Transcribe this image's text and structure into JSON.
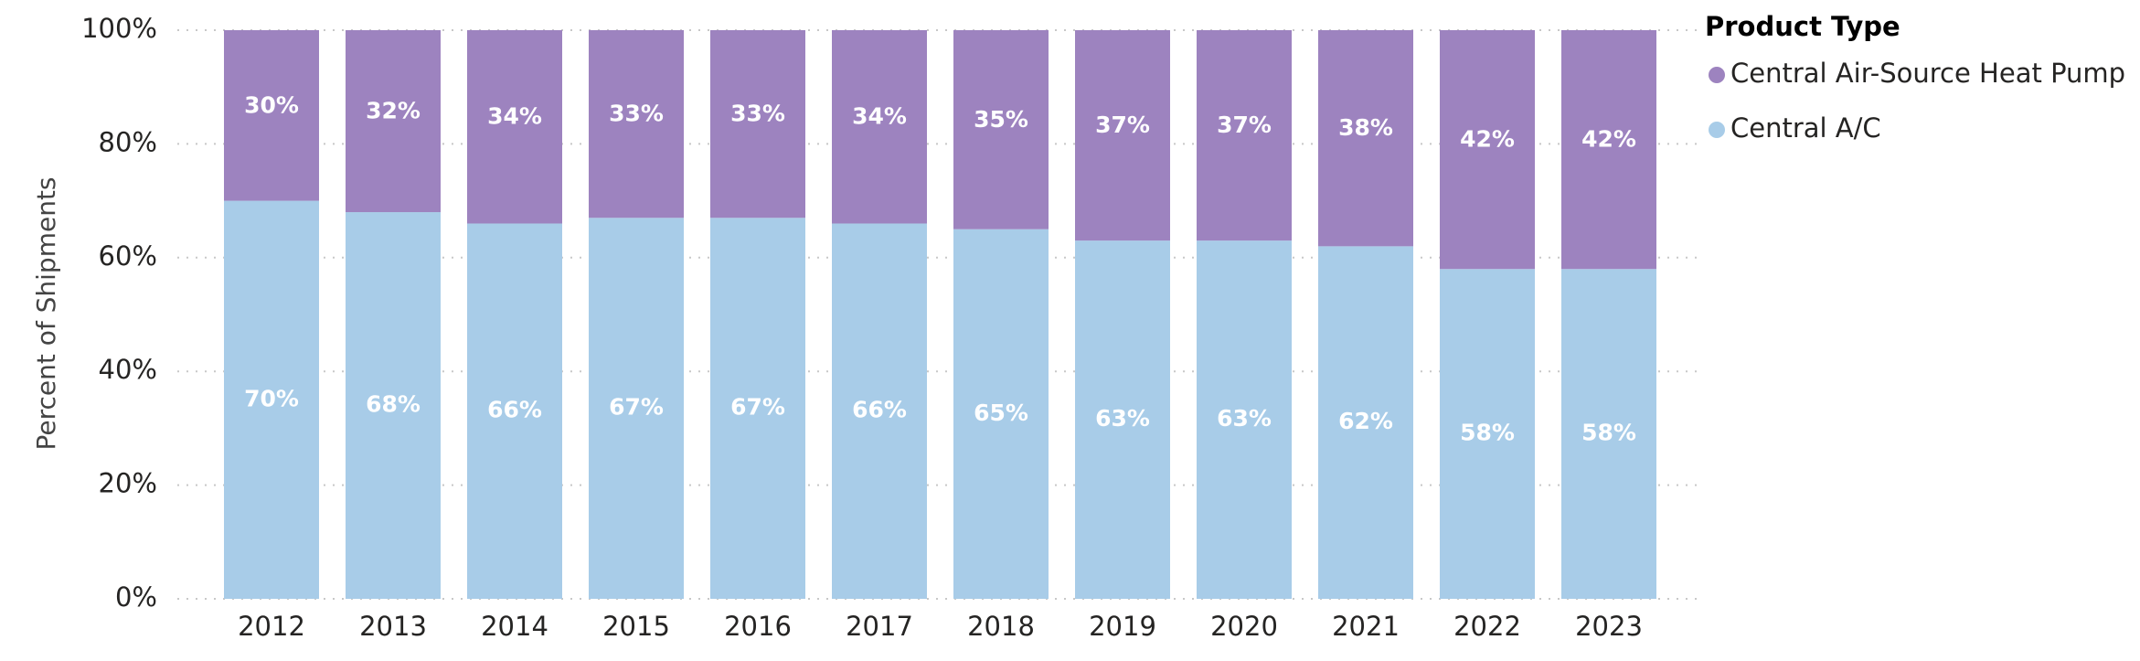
{
  "chart_data": {
    "type": "stacked_bar_100",
    "y_label": "Percent of Shipments",
    "legend_title": "Product Type",
    "categories": [
      "2012",
      "2013",
      "2014",
      "2015",
      "2016",
      "2017",
      "2018",
      "2019",
      "2020",
      "2021",
      "2022",
      "2023"
    ],
    "series": [
      {
        "name": "Central A/C",
        "color": "#a8cce8",
        "values": [
          70,
          68,
          66,
          67,
          67,
          66,
          65,
          63,
          63,
          62,
          58,
          58
        ],
        "value_labels": [
          "70%",
          "68%",
          "66%",
          "67%",
          "67%",
          "66%",
          "65%",
          "63%",
          "63%",
          "62%",
          "58%",
          "58%"
        ]
      },
      {
        "name": "Central Air-Source Heat Pump",
        "color": "#9d83bf",
        "values": [
          30,
          32,
          34,
          33,
          33,
          34,
          35,
          37,
          37,
          38,
          42,
          42
        ],
        "value_labels": [
          "30%",
          "32%",
          "34%",
          "33%",
          "33%",
          "34%",
          "35%",
          "37%",
          "37%",
          "38%",
          "42%",
          "42%"
        ]
      }
    ],
    "ylim": [
      0,
      100
    ],
    "yticks": [
      {
        "value": 0,
        "label": "0%"
      },
      {
        "value": 20,
        "label": "20%"
      },
      {
        "value": 40,
        "label": "40%"
      },
      {
        "value": 60,
        "label": "60%"
      },
      {
        "value": 80,
        "label": "80%"
      },
      {
        "value": 100,
        "label": "100%"
      }
    ],
    "grid": true,
    "legend_position": "right"
  }
}
